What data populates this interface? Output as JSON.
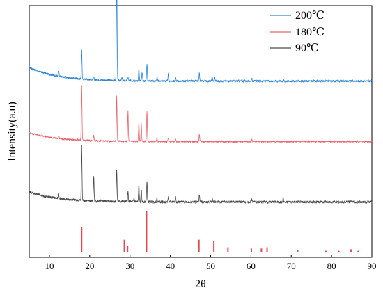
{
  "chart_data": {
    "type": "line",
    "xlabel": "2θ",
    "ylabel": "Intensity(a.u)",
    "xlim": [
      5,
      90
    ],
    "xticks": [
      10,
      20,
      30,
      40,
      50,
      60,
      70,
      80,
      90
    ],
    "y_ticks_shown": false,
    "grid": false,
    "legend_position": "top-right",
    "series": [
      {
        "name": "200℃",
        "color": "#2f86d6",
        "baseline": 0.7,
        "slope_from_left": 0.055,
        "noise": 0.004,
        "peaks": [
          [
            12.3,
            0.02
          ],
          [
            18.0,
            0.12
          ],
          [
            21.0,
            0.01
          ],
          [
            26.7,
            0.46
          ],
          [
            28.0,
            0.012
          ],
          [
            29.5,
            0.015
          ],
          [
            31.0,
            0.01
          ],
          [
            32.2,
            0.05
          ],
          [
            33.0,
            0.035
          ],
          [
            34.2,
            0.07
          ],
          [
            36.7,
            0.015
          ],
          [
            39.5,
            0.028
          ],
          [
            41.3,
            0.012
          ],
          [
            47.2,
            0.03
          ],
          [
            50.4,
            0.02
          ],
          [
            51.0,
            0.015
          ],
          [
            60.2,
            0.012
          ],
          [
            68.0,
            0.008
          ]
        ]
      },
      {
        "name": "180℃",
        "color": "#e8646e",
        "baseline": 0.46,
        "slope_from_left": 0.035,
        "noise": 0.003,
        "peaks": [
          [
            12.3,
            0.012
          ],
          [
            18.0,
            0.22
          ],
          [
            21.0,
            0.02
          ],
          [
            26.7,
            0.18
          ],
          [
            29.5,
            0.12
          ],
          [
            32.2,
            0.08
          ],
          [
            32.8,
            0.07
          ],
          [
            34.2,
            0.12
          ],
          [
            36.7,
            0.012
          ],
          [
            39.5,
            0.015
          ],
          [
            41.3,
            0.01
          ],
          [
            47.2,
            0.03
          ],
          [
            60.2,
            0.008
          ]
        ]
      },
      {
        "name": "90℃",
        "color": "#4a4a4a",
        "baseline": 0.22,
        "slope_from_left": 0.04,
        "noise": 0.005,
        "peaks": [
          [
            12.3,
            0.015
          ],
          [
            18.0,
            0.22
          ],
          [
            21.0,
            0.1
          ],
          [
            26.7,
            0.13
          ],
          [
            29.5,
            0.04
          ],
          [
            31.0,
            0.015
          ],
          [
            32.2,
            0.07
          ],
          [
            32.8,
            0.05
          ],
          [
            34.2,
            0.08
          ],
          [
            36.7,
            0.015
          ],
          [
            39.5,
            0.02
          ],
          [
            41.3,
            0.02
          ],
          [
            47.2,
            0.03
          ],
          [
            50.4,
            0.015
          ],
          [
            60.2,
            0.01
          ],
          [
            68.0,
            0.015
          ]
        ]
      }
    ],
    "reference": {
      "color": "#e8464f",
      "baseline": 0.02,
      "lines": [
        [
          18.0,
          0.1
        ],
        [
          28.6,
          0.05
        ],
        [
          29.4,
          0.025
        ],
        [
          34.1,
          0.165
        ],
        [
          47.1,
          0.05
        ],
        [
          50.8,
          0.045
        ],
        [
          54.3,
          0.02
        ],
        [
          60.1,
          0.015
        ],
        [
          62.6,
          0.015
        ],
        [
          64.0,
          0.02
        ],
        [
          71.6,
          0.008
        ],
        [
          78.6,
          0.006
        ],
        [
          81.8,
          0.006
        ],
        [
          84.8,
          0.012
        ],
        [
          86.6,
          0.006
        ]
      ]
    }
  }
}
